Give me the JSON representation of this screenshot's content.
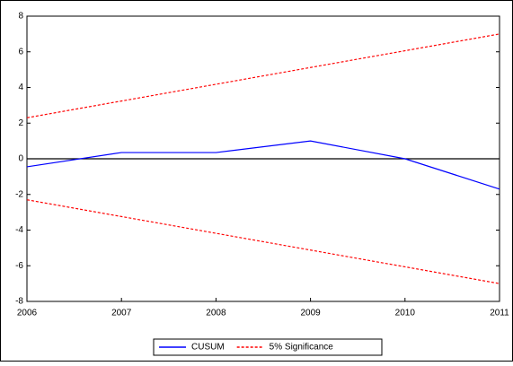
{
  "chart_data": {
    "type": "line",
    "x": [
      2006,
      2007,
      2008,
      2009,
      2010,
      2011
    ],
    "xlim": [
      2006,
      2011
    ],
    "xticks": [
      2006,
      2007,
      2008,
      2009,
      2010,
      2011
    ],
    "ylim": [
      -8,
      8
    ],
    "yticks": [
      -8,
      -6,
      -4,
      -2,
      0,
      2,
      4,
      6,
      8
    ],
    "legend": "bottom",
    "series": [
      {
        "name": "CUSUM",
        "color": "#0000ff",
        "values": [
          -0.45,
          0.35,
          0.35,
          1.0,
          0.0,
          -1.7
        ]
      },
      {
        "name": "5% Significance",
        "color": "#ff0000",
        "dashed": true,
        "values": [
          2.3,
          3.24,
          4.18,
          5.12,
          6.06,
          7.0
        ],
        "lower_values": [
          -2.3,
          -3.24,
          -4.18,
          -5.12,
          -6.06,
          -7.0
        ]
      }
    ]
  }
}
